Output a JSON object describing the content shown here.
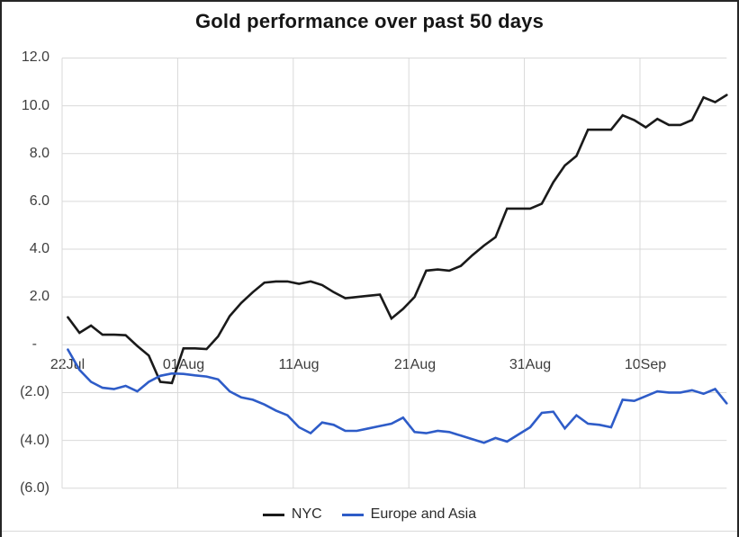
{
  "window": {
    "background_color": "#ffffff",
    "frame_border_color": "#262626"
  },
  "chart_data": {
    "type": "line",
    "title": "Gold performance over past 50 days",
    "xlabel": "",
    "ylabel": "",
    "ylim": [
      -6,
      12
    ],
    "grid": true,
    "legend_position": "bottom",
    "gridline_color": "#d9d9d9",
    "axis_label_color": "#3d3d3d",
    "y_tick_values": [
      12,
      10,
      8,
      6,
      4,
      2,
      0,
      -2,
      -4,
      -6
    ],
    "y_tick_labels": [
      "12.0",
      "10.0",
      "8.0",
      "6.0",
      "4.0",
      "2.0",
      "-",
      "(2.0)",
      "(4.0)",
      "(6.0)"
    ],
    "x_tick_labels": [
      "22Jul",
      "01Aug",
      "11Aug",
      "21Aug",
      "31Aug",
      "10Sep"
    ],
    "x_tick_interval_points": 10,
    "series": [
      {
        "name": "NYC",
        "color": "#1a1a1a",
        "values": [
          1.15,
          0.5,
          0.8,
          0.42,
          0.42,
          0.4,
          -0.05,
          -0.45,
          -1.55,
          -1.6,
          -0.15,
          -0.15,
          -0.18,
          0.35,
          1.2,
          1.75,
          2.2,
          2.6,
          2.65,
          2.65,
          2.55,
          2.65,
          2.5,
          2.2,
          1.95,
          2.0,
          2.05,
          2.1,
          1.1,
          1.5,
          2.0,
          3.1,
          3.15,
          3.1,
          3.3,
          3.75,
          4.15,
          4.5,
          5.7,
          5.7,
          5.7,
          5.9,
          6.8,
          7.5,
          7.9,
          9.0,
          9.0,
          9.0,
          9.6,
          9.4,
          9.1,
          9.45,
          9.2,
          9.2,
          9.4,
          10.35,
          10.15,
          10.45
        ]
      },
      {
        "name": "Europe and Asia",
        "color": "#2e5cc8",
        "values": [
          -0.2,
          -1.05,
          -1.55,
          -1.8,
          -1.85,
          -1.72,
          -1.95,
          -1.55,
          -1.3,
          -1.2,
          -1.22,
          -1.28,
          -1.33,
          -1.45,
          -1.95,
          -2.2,
          -2.3,
          -2.5,
          -2.75,
          -2.95,
          -3.45,
          -3.7,
          -3.25,
          -3.35,
          -3.6,
          -3.6,
          -3.5,
          -3.4,
          -3.3,
          -3.05,
          -3.65,
          -3.7,
          -3.6,
          -3.65,
          -3.8,
          -3.95,
          -4.1,
          -3.9,
          -4.05,
          -3.75,
          -3.45,
          -2.85,
          -2.8,
          -3.5,
          -2.95,
          -3.3,
          -3.35,
          -3.45,
          -2.3,
          -2.35,
          -2.15,
          -1.95,
          -2.0,
          -2.0,
          -1.9,
          -2.05,
          -1.85,
          -2.45
        ]
      }
    ]
  }
}
